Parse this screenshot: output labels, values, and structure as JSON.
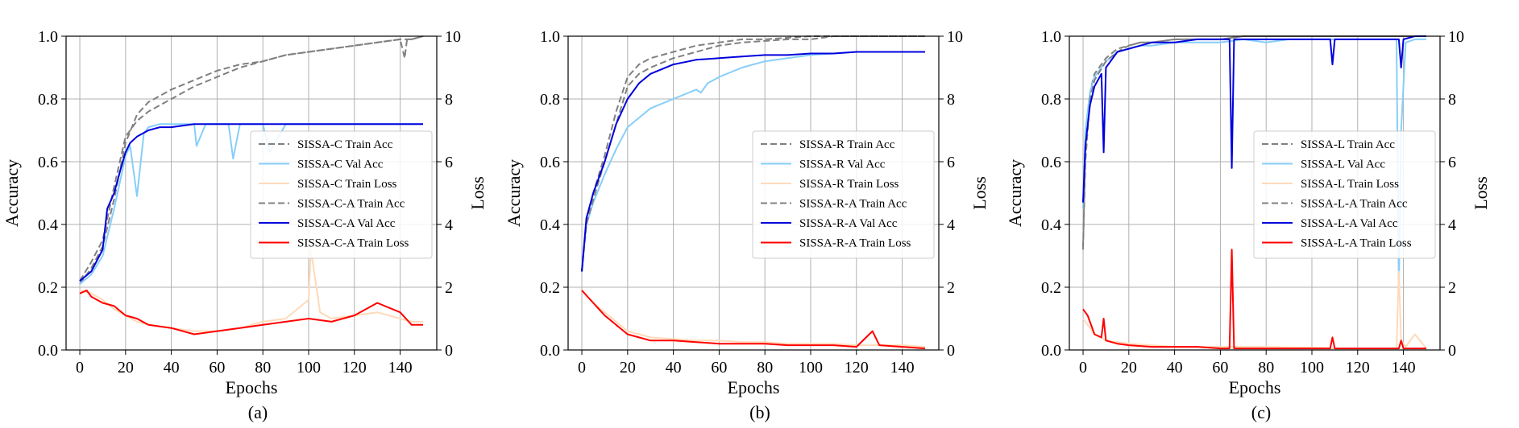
{
  "colors": {
    "train_acc": "#808080",
    "val_acc": "#87CEFA",
    "train_loss": "#FFDAB9",
    "a_train_acc": "#808080",
    "a_val_acc": "#0000DD",
    "a_train_loss": "#FF0000",
    "grid": "#b0b0b0"
  },
  "chart_data": [
    {
      "type": "line",
      "caption": "(a)",
      "xlabel": "Epochs",
      "ylabel": "Accuracy",
      "y2label": "Loss",
      "xlim": [
        -6,
        156
      ],
      "ylim": [
        0,
        1
      ],
      "y2lim": [
        0,
        10
      ],
      "xticks": [
        0,
        20,
        40,
        60,
        80,
        100,
        120,
        140
      ],
      "yticks": [
        0.0,
        0.2,
        0.4,
        0.6,
        0.8,
        1.0
      ],
      "y2ticks": [
        0,
        2,
        4,
        6,
        8,
        10
      ],
      "grid": true,
      "legend_position": "center-right",
      "series": [
        {
          "name": "SISSA-C Train Acc",
          "axis": "left",
          "style": "dashed",
          "color_key": "train_acc",
          "x": [
            0,
            5,
            10,
            15,
            20,
            25,
            30,
            40,
            50,
            60,
            70,
            80,
            90,
            100,
            110,
            120,
            130,
            140,
            145,
            150
          ],
          "y": [
            0.21,
            0.26,
            0.33,
            0.48,
            0.66,
            0.75,
            0.79,
            0.83,
            0.86,
            0.89,
            0.91,
            0.92,
            0.94,
            0.95,
            0.96,
            0.97,
            0.98,
            0.99,
            0.99,
            1.0
          ]
        },
        {
          "name": "SISSA-C Val Acc",
          "axis": "left",
          "style": "solid",
          "color_key": "val_acc",
          "x": [
            0,
            5,
            10,
            15,
            18,
            20,
            22,
            25,
            28,
            30,
            35,
            40,
            50,
            51,
            55,
            60,
            65,
            67,
            70,
            80,
            83,
            90,
            100,
            110,
            120,
            130,
            140,
            150
          ],
          "y": [
            0.21,
            0.24,
            0.3,
            0.45,
            0.55,
            0.62,
            0.65,
            0.49,
            0.69,
            0.71,
            0.72,
            0.72,
            0.72,
            0.65,
            0.72,
            0.72,
            0.72,
            0.61,
            0.72,
            0.72,
            0.63,
            0.72,
            0.72,
            0.72,
            0.72,
            0.72,
            0.72,
            0.72
          ]
        },
        {
          "name": "SISSA-C Train Loss",
          "axis": "right",
          "style": "solid",
          "color_key": "train_loss",
          "x": [
            0,
            5,
            10,
            15,
            20,
            25,
            30,
            40,
            50,
            60,
            70,
            80,
            90,
            100,
            101,
            105,
            110,
            120,
            130,
            140,
            145,
            150
          ],
          "y": [
            1.9,
            1.8,
            1.6,
            1.3,
            1.1,
            0.9,
            0.8,
            0.7,
            0.6,
            0.6,
            0.7,
            0.9,
            1.0,
            1.6,
            3.2,
            1.2,
            1.0,
            1.1,
            1.2,
            1.0,
            0.9,
            0.9
          ]
        },
        {
          "name": "SISSA-C-A Train Acc",
          "axis": "left",
          "style": "dashed",
          "color_key": "a_train_acc",
          "x": [
            0,
            5,
            10,
            15,
            20,
            25,
            30,
            40,
            50,
            60,
            70,
            80,
            90,
            100,
            110,
            120,
            130,
            140,
            142,
            143,
            145,
            150
          ],
          "y": [
            0.22,
            0.28,
            0.35,
            0.52,
            0.68,
            0.73,
            0.76,
            0.8,
            0.84,
            0.87,
            0.9,
            0.92,
            0.94,
            0.95,
            0.96,
            0.97,
            0.98,
            0.99,
            0.93,
            0.99,
            0.99,
            1.0
          ]
        },
        {
          "name": "SISSA-C-A Val Acc",
          "axis": "left",
          "style": "solid",
          "color_key": "a_val_acc",
          "x": [
            0,
            5,
            10,
            12,
            15,
            18,
            20,
            22,
            25,
            30,
            35,
            40,
            50,
            60,
            70,
            80,
            90,
            100,
            110,
            120,
            130,
            140,
            150
          ],
          "y": [
            0.22,
            0.25,
            0.32,
            0.45,
            0.5,
            0.58,
            0.63,
            0.66,
            0.68,
            0.7,
            0.71,
            0.71,
            0.72,
            0.72,
            0.72,
            0.72,
            0.72,
            0.72,
            0.72,
            0.72,
            0.72,
            0.72,
            0.72
          ]
        },
        {
          "name": "SISSA-C-A Train Loss",
          "axis": "right",
          "style": "solid",
          "color_key": "a_train_loss",
          "x": [
            0,
            3,
            5,
            10,
            15,
            20,
            25,
            30,
            40,
            50,
            60,
            70,
            80,
            90,
            100,
            110,
            120,
            130,
            140,
            145,
            150
          ],
          "y": [
            1.8,
            1.9,
            1.7,
            1.5,
            1.4,
            1.1,
            1.0,
            0.8,
            0.7,
            0.5,
            0.6,
            0.7,
            0.8,
            0.9,
            1.0,
            0.9,
            1.1,
            1.5,
            1.2,
            0.8,
            0.8
          ]
        }
      ]
    },
    {
      "type": "line",
      "caption": "(b)",
      "xlabel": "Epochs",
      "ylabel": "Accuracy",
      "y2label": "Loss",
      "xlim": [
        -6,
        156
      ],
      "ylim": [
        0,
        1
      ],
      "y2lim": [
        0,
        10
      ],
      "xticks": [
        0,
        20,
        40,
        60,
        80,
        100,
        120,
        140
      ],
      "yticks": [
        0.0,
        0.2,
        0.4,
        0.6,
        0.8,
        1.0
      ],
      "y2ticks": [
        0,
        2,
        4,
        6,
        8,
        10
      ],
      "grid": true,
      "legend_position": "center-right",
      "series": [
        {
          "name": "SISSA-R Train Acc",
          "axis": "left",
          "style": "dashed",
          "color_key": "train_acc",
          "x": [
            0,
            2,
            5,
            10,
            15,
            20,
            25,
            30,
            40,
            50,
            60,
            70,
            80,
            90,
            100,
            110,
            120,
            130,
            140,
            150
          ],
          "y": [
            0.25,
            0.4,
            0.5,
            0.62,
            0.76,
            0.87,
            0.91,
            0.93,
            0.95,
            0.97,
            0.98,
            0.99,
            0.99,
            0.995,
            1.0,
            1.0,
            1.0,
            1.0,
            1.0,
            1.0
          ]
        },
        {
          "name": "SISSA-R Val Acc",
          "axis": "left",
          "style": "solid",
          "color_key": "val_acc",
          "x": [
            0,
            2,
            5,
            10,
            15,
            20,
            25,
            30,
            40,
            50,
            52,
            55,
            60,
            70,
            80,
            90,
            100,
            110,
            120,
            130,
            140,
            150
          ],
          "y": [
            0.25,
            0.4,
            0.47,
            0.56,
            0.64,
            0.71,
            0.74,
            0.77,
            0.8,
            0.83,
            0.82,
            0.85,
            0.87,
            0.9,
            0.92,
            0.93,
            0.94,
            0.945,
            0.95,
            0.95,
            0.95,
            0.95
          ]
        },
        {
          "name": "SISSA-R Train Loss",
          "axis": "right",
          "style": "solid",
          "color_key": "train_loss",
          "x": [
            0,
            5,
            10,
            15,
            20,
            25,
            30,
            40,
            50,
            60,
            70,
            80,
            90,
            100,
            110,
            120,
            130,
            140,
            150
          ],
          "y": [
            1.9,
            1.5,
            1.2,
            0.9,
            0.6,
            0.5,
            0.4,
            0.35,
            0.3,
            0.3,
            0.25,
            0.25,
            0.2,
            0.2,
            0.2,
            0.15,
            0.15,
            0.15,
            0.1
          ]
        },
        {
          "name": "SISSA-R-A Train Acc",
          "axis": "left",
          "style": "dashed",
          "color_key": "a_train_acc",
          "x": [
            0,
            2,
            5,
            10,
            15,
            20,
            25,
            30,
            40,
            50,
            60,
            70,
            80,
            90,
            100,
            110,
            120,
            130,
            140,
            150
          ],
          "y": [
            0.25,
            0.4,
            0.48,
            0.6,
            0.72,
            0.84,
            0.88,
            0.9,
            0.93,
            0.95,
            0.97,
            0.98,
            0.985,
            0.99,
            0.99,
            1.0,
            1.0,
            1.0,
            1.0,
            1.0
          ]
        },
        {
          "name": "SISSA-R-A Val Acc",
          "axis": "left",
          "style": "solid",
          "color_key": "a_val_acc",
          "x": [
            0,
            2,
            5,
            10,
            15,
            20,
            25,
            30,
            40,
            50,
            60,
            70,
            80,
            90,
            100,
            110,
            120,
            130,
            140,
            150
          ],
          "y": [
            0.25,
            0.42,
            0.5,
            0.6,
            0.72,
            0.8,
            0.85,
            0.88,
            0.91,
            0.925,
            0.93,
            0.935,
            0.94,
            0.94,
            0.945,
            0.945,
            0.95,
            0.95,
            0.95,
            0.95
          ]
        },
        {
          "name": "SISSA-R-A Train Loss",
          "axis": "right",
          "style": "solid",
          "color_key": "a_train_loss",
          "x": [
            0,
            5,
            10,
            15,
            20,
            25,
            30,
            40,
            50,
            60,
            70,
            80,
            90,
            100,
            110,
            120,
            127,
            130,
            140,
            150
          ],
          "y": [
            1.9,
            1.5,
            1.1,
            0.8,
            0.5,
            0.4,
            0.3,
            0.3,
            0.25,
            0.2,
            0.2,
            0.2,
            0.15,
            0.15,
            0.15,
            0.1,
            0.6,
            0.15,
            0.1,
            0.05
          ]
        }
      ]
    },
    {
      "type": "line",
      "caption": "(c)",
      "xlabel": "Epochs",
      "ylabel": "Accuracy",
      "y2label": "Loss",
      "xlim": [
        -6,
        156
      ],
      "ylim": [
        0,
        1
      ],
      "y2lim": [
        0,
        10
      ],
      "xticks": [
        0,
        20,
        40,
        60,
        80,
        100,
        120,
        140
      ],
      "yticks": [
        0.0,
        0.2,
        0.4,
        0.6,
        0.8,
        1.0
      ],
      "y2ticks": [
        0,
        2,
        4,
        6,
        8,
        10
      ],
      "grid": true,
      "legend_position": "center-right",
      "series": [
        {
          "name": "SISSA-L Train Acc",
          "axis": "left",
          "style": "dashed",
          "color_key": "train_acc",
          "x": [
            0,
            1,
            3,
            5,
            10,
            15,
            20,
            25,
            30,
            40,
            50,
            60,
            70,
            80,
            90,
            100,
            110,
            120,
            130,
            140,
            150
          ],
          "y": [
            0.32,
            0.65,
            0.82,
            0.88,
            0.93,
            0.96,
            0.97,
            0.98,
            0.98,
            0.99,
            0.99,
            0.99,
            1.0,
            1.0,
            1.0,
            1.0,
            1.0,
            1.0,
            1.0,
            1.0,
            1.0
          ]
        },
        {
          "name": "SISSA-L Val Acc",
          "axis": "left",
          "style": "solid",
          "color_key": "val_acc",
          "x": [
            0,
            1,
            3,
            5,
            10,
            15,
            20,
            25,
            30,
            40,
            50,
            60,
            70,
            80,
            90,
            100,
            110,
            120,
            130,
            137,
            138,
            139,
            141,
            145,
            150
          ],
          "y": [
            0.45,
            0.7,
            0.82,
            0.87,
            0.92,
            0.95,
            0.96,
            0.97,
            0.97,
            0.98,
            0.98,
            0.98,
            0.99,
            0.98,
            0.99,
            0.99,
            0.99,
            0.99,
            0.99,
            0.99,
            0.18,
            0.7,
            0.98,
            0.99,
            0.99
          ]
        },
        {
          "name": "SISSA-L Train Loss",
          "axis": "right",
          "style": "solid",
          "color_key": "train_loss",
          "x": [
            0,
            3,
            5,
            10,
            20,
            30,
            40,
            50,
            60,
            70,
            80,
            90,
            100,
            110,
            120,
            130,
            137,
            138,
            139,
            141,
            145,
            150
          ],
          "y": [
            1.0,
            0.7,
            0.5,
            0.3,
            0.2,
            0.15,
            0.1,
            0.1,
            0.1,
            0.1,
            0.1,
            0.08,
            0.08,
            0.05,
            0.05,
            0.05,
            0.05,
            2.5,
            0.3,
            0.1,
            0.5,
            0.05
          ]
        },
        {
          "name": "SISSA-L-A Train Acc",
          "axis": "left",
          "style": "dashed",
          "color_key": "a_train_acc",
          "x": [
            0,
            1,
            3,
            5,
            10,
            15,
            20,
            25,
            30,
            40,
            50,
            60,
            70,
            80,
            90,
            100,
            110,
            120,
            130,
            140,
            150
          ],
          "y": [
            0.33,
            0.6,
            0.8,
            0.86,
            0.92,
            0.95,
            0.97,
            0.98,
            0.98,
            0.99,
            0.99,
            0.99,
            1.0,
            1.0,
            1.0,
            1.0,
            1.0,
            1.0,
            1.0,
            1.0,
            1.0
          ]
        },
        {
          "name": "SISSA-L-A Val Acc",
          "axis": "left",
          "style": "solid",
          "color_key": "a_val_acc",
          "x": [
            0,
            1,
            3,
            5,
            8,
            9,
            10,
            15,
            20,
            25,
            30,
            40,
            50,
            60,
            64,
            65,
            66,
            70,
            80,
            90,
            100,
            108,
            109,
            110,
            120,
            130,
            138,
            139,
            140,
            145,
            150
          ],
          "y": [
            0.47,
            0.65,
            0.78,
            0.84,
            0.88,
            0.63,
            0.9,
            0.95,
            0.96,
            0.97,
            0.98,
            0.98,
            0.99,
            0.99,
            0.99,
            0.58,
            0.99,
            0.99,
            0.99,
            0.99,
            0.99,
            0.99,
            0.91,
            0.99,
            0.99,
            0.99,
            0.99,
            0.9,
            0.99,
            1.0,
            1.0
          ]
        },
        {
          "name": "SISSA-L-A Train Loss",
          "axis": "right",
          "style": "solid",
          "color_key": "a_train_loss",
          "x": [
            0,
            2,
            5,
            8,
            9,
            10,
            15,
            20,
            30,
            40,
            50,
            60,
            64,
            65,
            66,
            70,
            80,
            90,
            100,
            108,
            109,
            110,
            120,
            130,
            138,
            139,
            140,
            150
          ],
          "y": [
            1.3,
            1.1,
            0.5,
            0.4,
            1.0,
            0.3,
            0.2,
            0.15,
            0.1,
            0.1,
            0.1,
            0.05,
            0.05,
            3.2,
            0.05,
            0.05,
            0.05,
            0.05,
            0.05,
            0.05,
            0.4,
            0.05,
            0.05,
            0.05,
            0.05,
            0.3,
            0.05,
            0.05
          ]
        }
      ]
    }
  ]
}
